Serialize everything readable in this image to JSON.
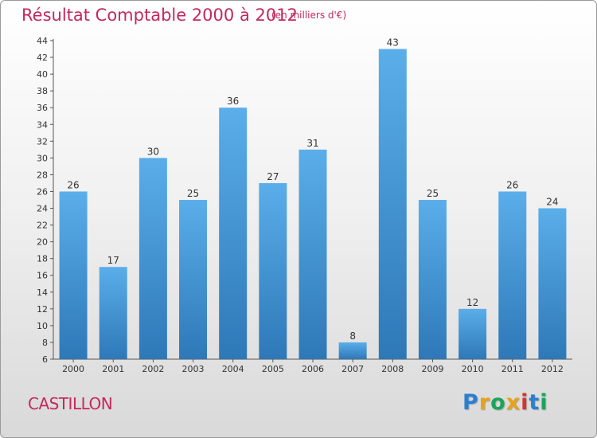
{
  "title": "Résultat Comptable 2000 à 2012",
  "subtitle": "(en milliers d'€)",
  "commune": "CASTILLON",
  "brand": "Proxiti",
  "colors": {
    "title": "#c4285e",
    "bar_top": "#5aaeea",
    "bar_bottom": "#2e78b8",
    "logo": [
      "#2a7fd0",
      "#e8a21a",
      "#1aa55a",
      "#e8a21a",
      "#d6342c",
      "#2a7fd0",
      "#1aa55a"
    ]
  },
  "chart_data": {
    "type": "bar",
    "title": "Résultat Comptable 2000 à 2012",
    "unit": "(en milliers d'€)",
    "categories": [
      "2000",
      "2001",
      "2002",
      "2003",
      "2004",
      "2005",
      "2006",
      "2007",
      "2008",
      "2009",
      "2010",
      "2011",
      "2012"
    ],
    "values": [
      26,
      17,
      30,
      25,
      36,
      27,
      31,
      8,
      43,
      25,
      12,
      26,
      24
    ],
    "ylim": [
      6,
      44
    ],
    "yticks": [
      6,
      8,
      10,
      12,
      14,
      16,
      18,
      20,
      22,
      24,
      26,
      28,
      30,
      32,
      34,
      36,
      38,
      40,
      42,
      44
    ],
    "grid": false,
    "xlabel": "",
    "ylabel": ""
  }
}
